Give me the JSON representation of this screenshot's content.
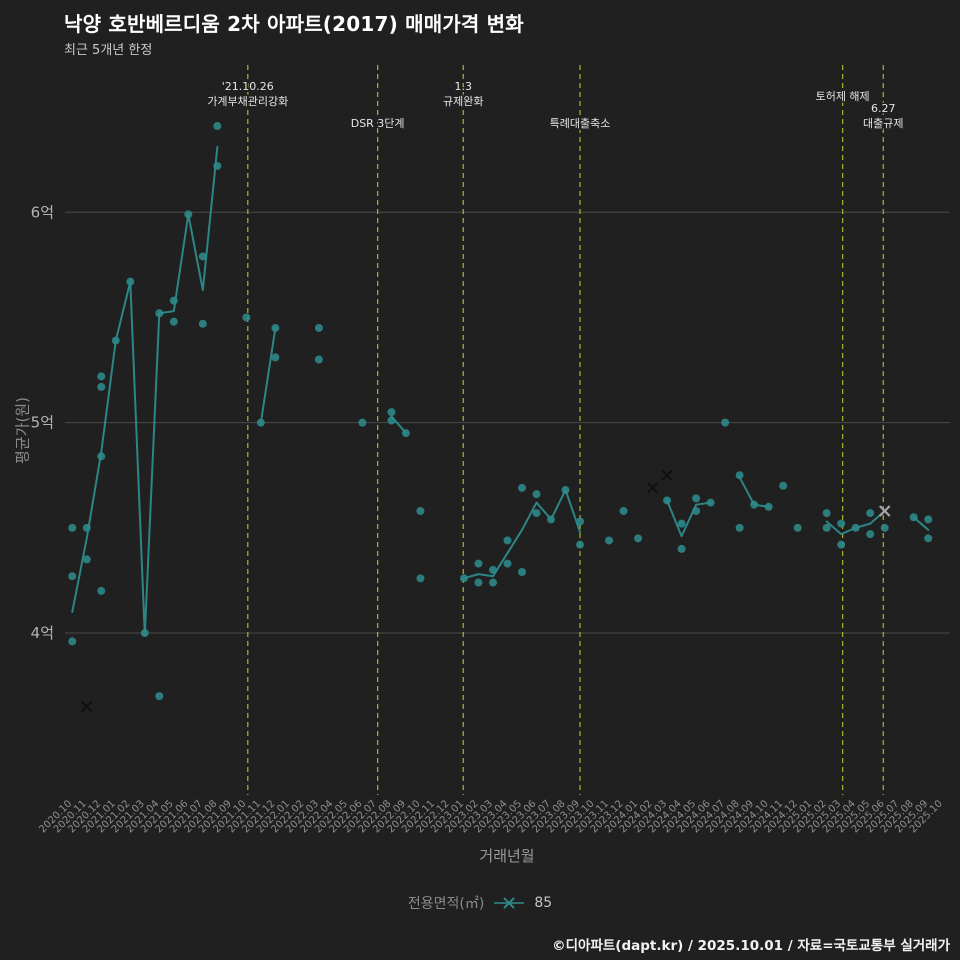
{
  "page": {
    "title": "낙양 호반베르디움 2차 아파트(2017) 매매가격 변화",
    "subtitle": "최근 5개년 한정",
    "footer": "©디아파트(dapt.kr) / 2025.10.01 / 자료=국토교통부 실거래가"
  },
  "axes": {
    "x_title": "거래년월",
    "y_title": "평균가(원)"
  },
  "legend": {
    "label": "전용면적(㎡)",
    "series": "85"
  },
  "colors": {
    "background": "#202020",
    "teal": "#2e8b8b",
    "grid": "#4a4a4a",
    "event_line": "#b3b32b",
    "event_text": "#e6e6e6",
    "tick_text": "#8f8f8f",
    "ytick_text": "#b4b4b4",
    "cancel_dark": "#111111",
    "cancel_light": "#a6a6a6"
  },
  "chart_data": {
    "type": "scatter",
    "title": "낙양 호반베르디움 2차 아파트(2017) 매매가격 변화",
    "xlabel": "거래년월",
    "ylabel": "평균가(원)",
    "unit": "억",
    "ylim": [
      3.23,
      6.7
    ],
    "grid": true,
    "y_ticks": [
      {
        "v": 4,
        "label": "4억"
      },
      {
        "v": 5,
        "label": "5억"
      },
      {
        "v": 6,
        "label": "6억"
      }
    ],
    "x_categories": [
      "2020.10",
      "2020.11",
      "2020.12",
      "2021.01",
      "2021.02",
      "2021.03",
      "2021.04",
      "2021.05",
      "2021.06",
      "2021.07",
      "2021.08",
      "2021.09",
      "2021.10",
      "2021.11",
      "2021.12",
      "2022.01",
      "2022.02",
      "2022.03",
      "2022.04",
      "2022.05",
      "2022.06",
      "2022.07",
      "2022.08",
      "2022.09",
      "2022.10",
      "2022.11",
      "2022.12",
      "2023.01",
      "2023.02",
      "2023.03",
      "2023.04",
      "2023.05",
      "2023.06",
      "2023.07",
      "2023.08",
      "2023.09",
      "2023.10",
      "2023.11",
      "2023.12",
      "2024.01",
      "2024.02",
      "2024.03",
      "2024.04",
      "2024.05",
      "2024.06",
      "2024.07",
      "2024.08",
      "2024.09",
      "2024.10",
      "2024.11",
      "2024.12",
      "2025.01",
      "2025.02",
      "2025.03",
      "2025.04",
      "2025.05",
      "2025.06",
      "2025.07",
      "2025.08",
      "2025.09",
      "2025.10"
    ],
    "points": [
      [
        "2020.10",
        4.5
      ],
      [
        "2020.10",
        4.27
      ],
      [
        "2020.10",
        3.96
      ],
      [
        "2020.11",
        4.5
      ],
      [
        "2020.11",
        4.35
      ],
      [
        "2020.12",
        5.22
      ],
      [
        "2020.12",
        5.17
      ],
      [
        "2020.12",
        4.84
      ],
      [
        "2020.12",
        4.2
      ],
      [
        "2021.01",
        5.39
      ],
      [
        "2021.02",
        5.67
      ],
      [
        "2021.03",
        4.0
      ],
      [
        "2021.04",
        5.52
      ],
      [
        "2021.04",
        3.7
      ],
      [
        "2021.05",
        5.58
      ],
      [
        "2021.05",
        5.48
      ],
      [
        "2021.06",
        5.99
      ],
      [
        "2021.07",
        5.79
      ],
      [
        "2021.07",
        5.47
      ],
      [
        "2021.08",
        6.41
      ],
      [
        "2021.08",
        6.22
      ],
      [
        "2021.10",
        5.5
      ],
      [
        "2021.11",
        5.0
      ],
      [
        "2021.12",
        5.45
      ],
      [
        "2021.12",
        5.31
      ],
      [
        "2022.03",
        5.45
      ],
      [
        "2022.03",
        5.3
      ],
      [
        "2022.06",
        5.0
      ],
      [
        "2022.08",
        5.05
      ],
      [
        "2022.08",
        5.01
      ],
      [
        "2022.09",
        4.95
      ],
      [
        "2022.10",
        4.58
      ],
      [
        "2022.10",
        4.26
      ],
      [
        "2023.01",
        4.26
      ],
      [
        "2023.02",
        4.33
      ],
      [
        "2023.02",
        4.24
      ],
      [
        "2023.03",
        4.3
      ],
      [
        "2023.03",
        4.24
      ],
      [
        "2023.04",
        4.33
      ],
      [
        "2023.04",
        4.44
      ],
      [
        "2023.05",
        4.69
      ],
      [
        "2023.05",
        4.29
      ],
      [
        "2023.06",
        4.57
      ],
      [
        "2023.06",
        4.66
      ],
      [
        "2023.07",
        4.54
      ],
      [
        "2023.08",
        4.68
      ],
      [
        "2023.09",
        4.53
      ],
      [
        "2023.09",
        4.42
      ],
      [
        "2023.11",
        4.44
      ],
      [
        "2023.12",
        4.58
      ],
      [
        "2024.01",
        4.45
      ],
      [
        "2024.03",
        4.63
      ],
      [
        "2024.04",
        4.52
      ],
      [
        "2024.04",
        4.4
      ],
      [
        "2024.05",
        4.58
      ],
      [
        "2024.05",
        4.64
      ],
      [
        "2024.06",
        4.62
      ],
      [
        "2024.07",
        5.0
      ],
      [
        "2024.08",
        4.75
      ],
      [
        "2024.08",
        4.5
      ],
      [
        "2024.09",
        4.61
      ],
      [
        "2024.10",
        4.6
      ],
      [
        "2024.11",
        4.7
      ],
      [
        "2024.12",
        4.5
      ],
      [
        "2025.02",
        4.57
      ],
      [
        "2025.02",
        4.5
      ],
      [
        "2025.03",
        4.52
      ],
      [
        "2025.03",
        4.42
      ],
      [
        "2025.04",
        4.5
      ],
      [
        "2025.05",
        4.47
      ],
      [
        "2025.05",
        4.57
      ],
      [
        "2025.06",
        4.5
      ],
      [
        "2025.08",
        4.55
      ],
      [
        "2025.09",
        4.54
      ],
      [
        "2025.09",
        4.45
      ]
    ],
    "cancelled_points": [
      [
        "2020.11",
        3.65,
        "dark"
      ],
      [
        "2024.02",
        4.69,
        "dark"
      ],
      [
        "2024.03",
        4.75,
        "dark"
      ],
      [
        "2025.06",
        4.58,
        "light"
      ]
    ],
    "line_segments": [
      [
        [
          "2020.10",
          4.1
        ],
        [
          "2020.11",
          4.45
        ],
        [
          "2020.12",
          4.86
        ],
        [
          "2021.01",
          5.39
        ],
        [
          "2021.02",
          5.67
        ],
        [
          "2021.03",
          3.99
        ],
        [
          "2021.04",
          5.52
        ],
        [
          "2021.05",
          5.53
        ],
        [
          "2021.06",
          5.99
        ],
        [
          "2021.07",
          5.63
        ],
        [
          "2021.08",
          6.31
        ]
      ],
      [
        [
          "2021.11",
          5.0
        ],
        [
          "2021.12",
          5.45
        ]
      ],
      [
        [
          "2022.08",
          5.03
        ],
        [
          "2022.09",
          4.95
        ]
      ],
      [
        [
          "2023.01",
          4.26
        ],
        [
          "2023.02",
          4.28
        ],
        [
          "2023.03",
          4.27
        ],
        [
          "2023.04",
          4.38
        ],
        [
          "2023.05",
          4.49
        ],
        [
          "2023.06",
          4.62
        ],
        [
          "2023.07",
          4.54
        ],
        [
          "2023.08",
          4.68
        ],
        [
          "2023.09",
          4.48
        ]
      ],
      [
        [
          "2024.03",
          4.63
        ],
        [
          "2024.04",
          4.46
        ],
        [
          "2024.05",
          4.61
        ],
        [
          "2024.06",
          4.62
        ]
      ],
      [
        [
          "2024.08",
          4.74
        ],
        [
          "2024.09",
          4.61
        ],
        [
          "2024.10",
          4.6
        ]
      ],
      [
        [
          "2025.02",
          4.53
        ],
        [
          "2025.03",
          4.47
        ],
        [
          "2025.04",
          4.5
        ],
        [
          "2025.05",
          4.52
        ],
        [
          "2025.06",
          4.58
        ]
      ],
      [
        [
          "2025.08",
          4.55
        ],
        [
          "2025.09",
          4.49
        ]
      ]
    ],
    "events": [
      {
        "index": 12.1,
        "labels": [
          {
            "text": "'21.10.26",
            "y": 90
          },
          {
            "text": "가계부채관리강화",
            "y": 105
          }
        ]
      },
      {
        "index": 21.05,
        "labels": [
          {
            "text": "DSR 3단계",
            "y": 127
          }
        ]
      },
      {
        "index": 26.95,
        "labels": [
          {
            "text": "1.3",
            "y": 90
          },
          {
            "text": "규제완화",
            "y": 105
          }
        ]
      },
      {
        "index": 35.0,
        "labels": [
          {
            "text": "특례대출축소",
            "y": 127
          }
        ]
      },
      {
        "index": 53.1,
        "labels": [
          {
            "text": "토허제 해제",
            "y": 100
          }
        ]
      },
      {
        "index": 55.9,
        "labels": [
          {
            "text": "6.27",
            "y": 112
          },
          {
            "text": "대출규제",
            "y": 127
          }
        ]
      }
    ]
  }
}
